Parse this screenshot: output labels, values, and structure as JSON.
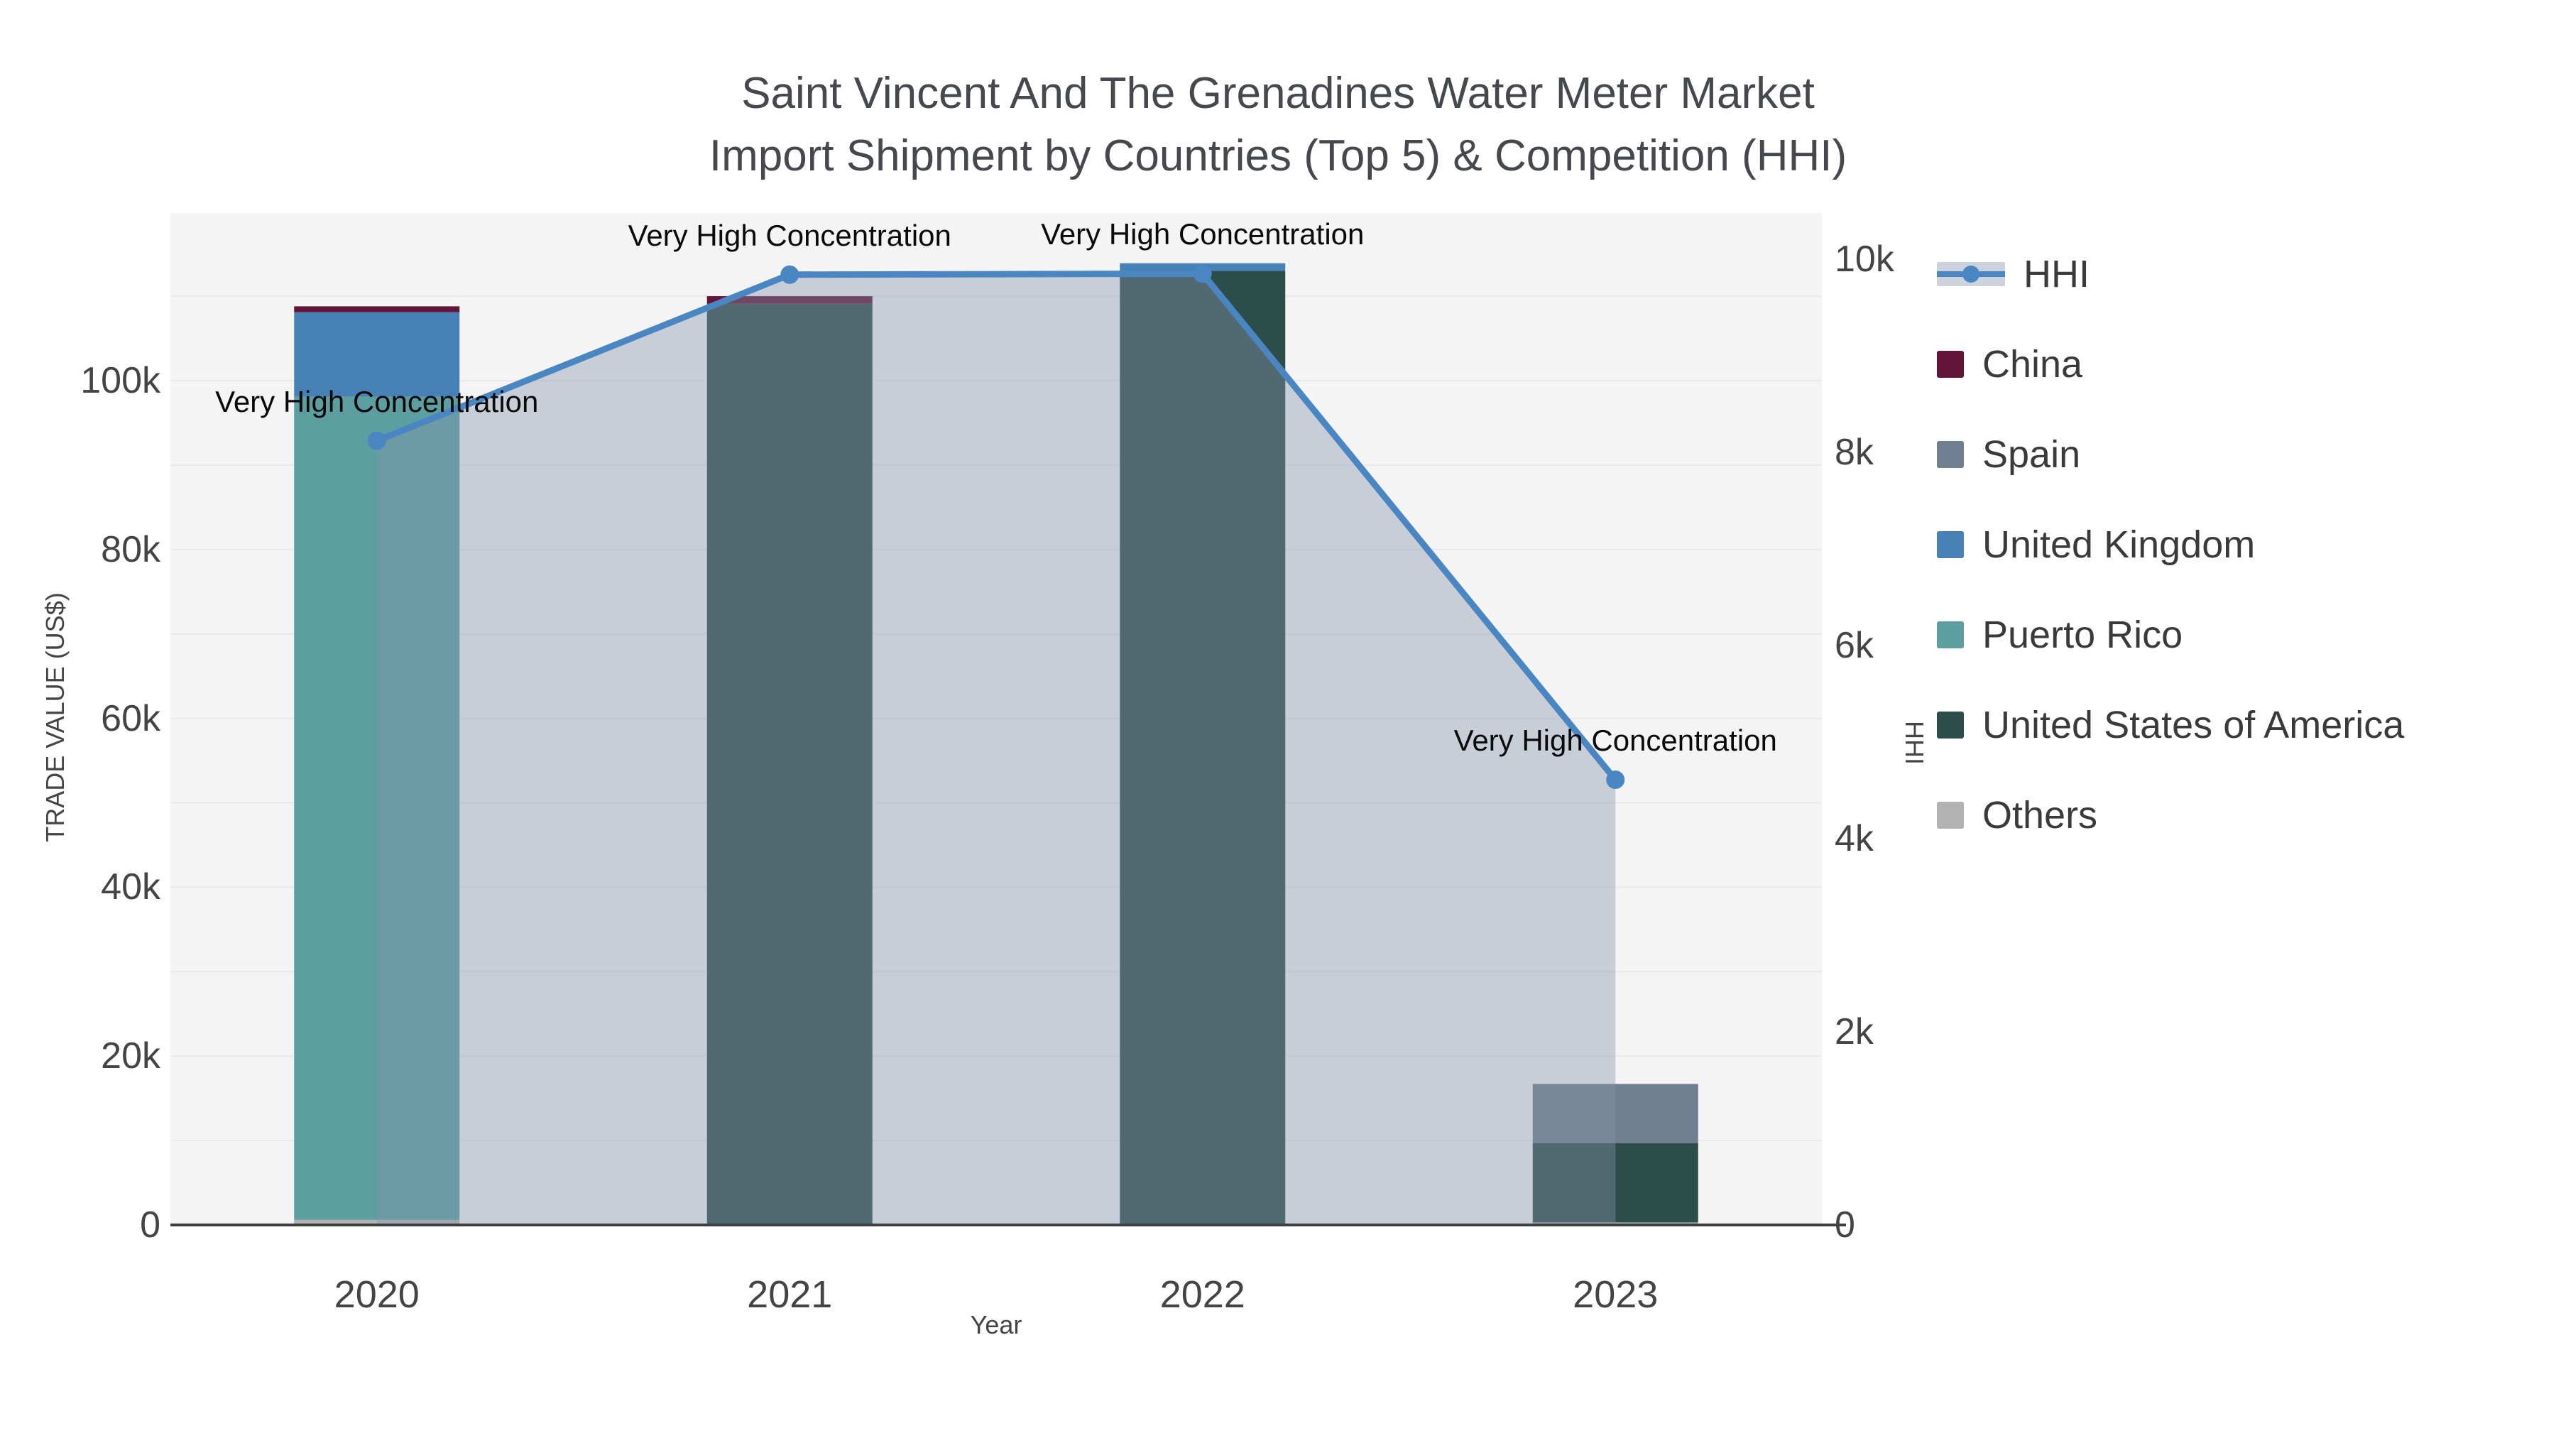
{
  "title": {
    "line1": "Saint Vincent And The Grenadines Water Meter Market",
    "line2": "Import Shipment by Countries (Top 5) & Competition (HHI)"
  },
  "axes": {
    "left": {
      "title": "TRADE VALUE (US$)",
      "tick_labels": [
        "0",
        "20k",
        "40k",
        "60k",
        "80k",
        "100k"
      ],
      "tick_values": [
        0,
        20000,
        40000,
        60000,
        80000,
        100000
      ]
    },
    "right": {
      "title": "HHI",
      "tick_labels": [
        "0",
        "2k",
        "4k",
        "6k",
        "8k",
        "10k"
      ],
      "tick_values": [
        0,
        2000,
        4000,
        6000,
        8000,
        10000
      ]
    },
    "x": {
      "title": "Year",
      "categories": [
        "2020",
        "2021",
        "2022",
        "2023"
      ]
    }
  },
  "colors": {
    "plot_background": "#f4f4f5",
    "gridline": "#e8e8ea",
    "axis_line": "#3f3f3f",
    "hhi_line": "#4a86c2",
    "hhi_area_fill": "rgba(134,150,172,0.40)",
    "hhi_legend_band": "#ccd3dc",
    "annotation_text": "#0a0a0a"
  },
  "legend": {
    "items": [
      {
        "label": "HHI",
        "color": "#4a86c2",
        "type": "line"
      },
      {
        "label": "China",
        "color": "#621539",
        "type": "bar"
      },
      {
        "label": "Spain",
        "color": "#6f7f8f",
        "type": "bar"
      },
      {
        "label": "United Kingdom",
        "color": "#4781b5",
        "type": "bar"
      },
      {
        "label": "Puerto Rico",
        "color": "#5d9fa1",
        "type": "bar"
      },
      {
        "label": "United States of America",
        "color": "#2d4d4b",
        "type": "bar"
      },
      {
        "label": "Others",
        "color": "#b2b2b2",
        "type": "bar"
      }
    ]
  },
  "chart_data": {
    "type": "bar",
    "subtype": "stacked-bars-with-hhi-line-and-area",
    "title": "Saint Vincent And The Grenadines Water Meter Market Import Shipment by Countries (Top 5) & Competition (HHI)",
    "xlabel": "Year",
    "ylabel_left": "TRADE VALUE (US$)",
    "ylabel_right": "HHI",
    "categories": [
      "2020",
      "2021",
      "2022",
      "2023"
    ],
    "ylim_left": [
      0,
      119900
    ],
    "ylim_right": [
      0,
      10000
    ],
    "grid": true,
    "legend_position": "right",
    "series": [
      {
        "name": "China",
        "color": "#621539",
        "values": [
          700,
          900,
          0,
          0
        ]
      },
      {
        "name": "Spain",
        "color": "#6f7f8f",
        "values": [
          0,
          0,
          0,
          7000
        ]
      },
      {
        "name": "United Kingdom",
        "color": "#4781b5",
        "values": [
          10000,
          0,
          900,
          0
        ]
      },
      {
        "name": "Puerto Rico",
        "color": "#5d9fa1",
        "values": [
          97500,
          0,
          0,
          0
        ]
      },
      {
        "name": "United States of America",
        "color": "#2d4d4b",
        "values": [
          0,
          109100,
          113000,
          9400
        ]
      },
      {
        "name": "Others",
        "color": "#b2b2b2",
        "values": [
          600,
          0,
          0,
          300
        ]
      }
    ],
    "stack_order_bottom_to_top": [
      "Others",
      "Puerto Rico",
      "United States of America",
      "United Kingdom",
      "Spain",
      "China"
    ],
    "bar_totals": [
      108800,
      110000,
      113900,
      16700
    ],
    "line_series": {
      "name": "HHI",
      "axis": "right",
      "color": "#4a86c2",
      "values": [
        8120,
        9840,
        9850,
        4610
      ]
    },
    "annotations": [
      {
        "text": "Very High Concentration",
        "category": "2020"
      },
      {
        "text": "Very High Concentration",
        "category": "2021"
      },
      {
        "text": "Very High Concentration",
        "category": "2022"
      },
      {
        "text": "Very High Concentration",
        "category": "2023"
      }
    ]
  }
}
